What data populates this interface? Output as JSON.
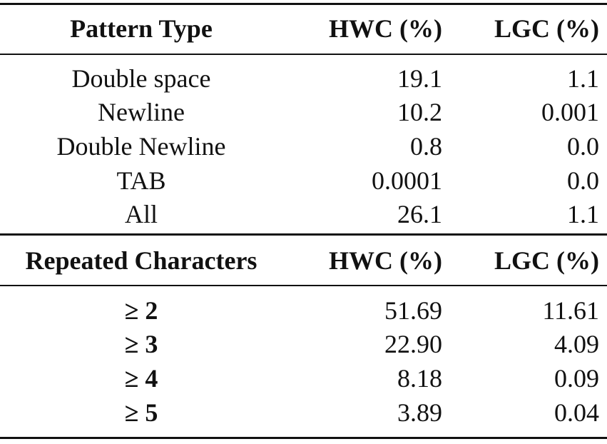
{
  "sections": [
    {
      "header": [
        "Pattern Type",
        "HWC (%)",
        "LGC (%)"
      ],
      "rows": [
        [
          "Double space",
          "19.1",
          "1.1"
        ],
        [
          "Newline",
          "10.2",
          "0.001"
        ],
        [
          "Double Newline",
          "0.8",
          "0.0"
        ],
        [
          "TAB",
          "0.0001",
          "0.0"
        ],
        [
          "All",
          "26.1",
          "1.1"
        ]
      ]
    },
    {
      "header": [
        "Repeated Characters",
        "HWC (%)",
        "LGC (%)"
      ],
      "rows": [
        [
          "≥ 2",
          "51.69",
          "11.61"
        ],
        [
          "≥ 3",
          "22.90",
          "4.09"
        ],
        [
          "≥ 4",
          "8.18",
          "0.09"
        ],
        [
          "≥ 5",
          "3.89",
          "0.04"
        ]
      ]
    }
  ]
}
